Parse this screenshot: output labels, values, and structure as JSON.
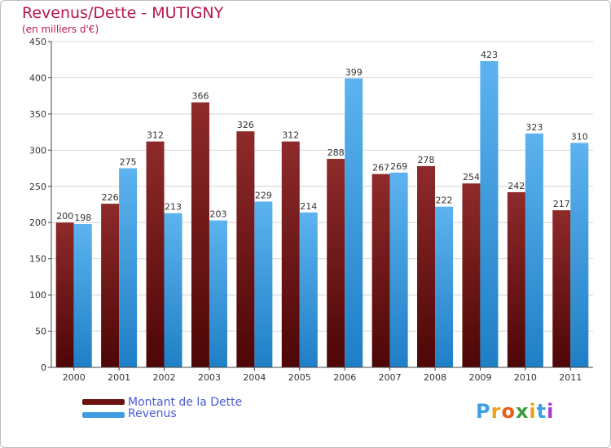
{
  "header": {
    "title": "Revenus/Dette - MUTIGNY",
    "subtitle": "(en milliers d'€)"
  },
  "chart_data": {
    "type": "bar",
    "title": "Revenus/Dette - MUTIGNY",
    "ylabel": "(en milliers d'€)",
    "xlabel": "",
    "categories": [
      "2000",
      "2001",
      "2002",
      "2003",
      "2004",
      "2005",
      "2006",
      "2007",
      "2008",
      "2009",
      "2010",
      "2011"
    ],
    "series": [
      {
        "name": "Montant de la Dette",
        "color": "#7a1c1c",
        "values": [
          200,
          226,
          312,
          366,
          326,
          312,
          288,
          267,
          278,
          254,
          242,
          217
        ]
      },
      {
        "name": "Revenus",
        "color": "#3e9de0",
        "values": [
          198,
          275,
          213,
          203,
          229,
          214,
          399,
          269,
          222,
          423,
          323,
          310
        ]
      }
    ],
    "ylim": [
      0,
      450
    ],
    "yticks": [
      0,
      50,
      100,
      150,
      200,
      250,
      300,
      350,
      400,
      450
    ],
    "grid": true,
    "legend": "bottom-left"
  },
  "legend": {
    "items": [
      {
        "label": "Montant de la Dette",
        "color": "#6b1111"
      },
      {
        "label": "Revenus",
        "color": "#3e9de0"
      }
    ]
  },
  "logo": {
    "letters": [
      "P",
      "r",
      "o",
      "x",
      "i",
      "t",
      "i"
    ],
    "colors": [
      "#3aa0e0",
      "#e8a21a",
      "#e85d1a",
      "#3a9c3a",
      "#e8a21a",
      "#3aa0e0",
      "#a63cc7"
    ]
  }
}
